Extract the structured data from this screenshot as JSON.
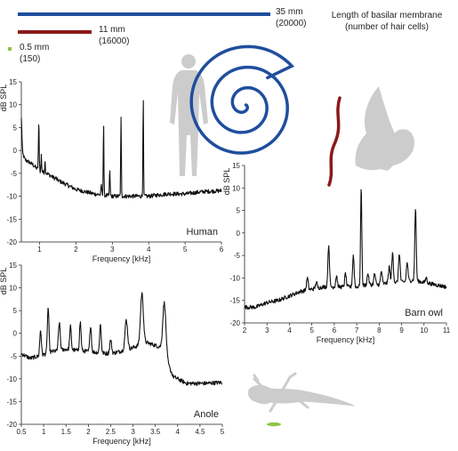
{
  "legend": {
    "header_line1": "Length of basilar membrane",
    "header_line2": "(number of hair cells)",
    "bars": [
      {
        "length": "35 mm",
        "cells": "(20000)",
        "color": "#1f4e9e",
        "mm": 35
      },
      {
        "length": "11 mm",
        "cells": "(16000)",
        "color": "#8b1a1a",
        "mm": 11
      },
      {
        "length": "0.5 mm",
        "cells": "(150)",
        "color": "#8dc63f",
        "mm": 0.5
      }
    ]
  },
  "illustrations": {
    "human": {
      "icon": "human-silhouette-icon",
      "color": "#cccccc"
    },
    "human_membrane": {
      "icon": "cochlea-spiral-icon",
      "color": "#1f4e9e"
    },
    "owl": {
      "icon": "owl-silhouette-icon",
      "color": "#cccccc"
    },
    "owl_membrane": {
      "icon": "owl-membrane-icon",
      "color": "#8b1a1a"
    },
    "anole": {
      "icon": "anole-silhouette-icon",
      "color": "#cccccc"
    },
    "anole_membrane": {
      "icon": "anole-membrane-icon",
      "color": "#8dc63f"
    }
  },
  "chart_data": [
    {
      "type": "line",
      "label": "Human",
      "xlabel": "Frequency [kHz]",
      "ylabel": "dB SPL",
      "xlim": [
        0.5,
        6
      ],
      "ylim": [
        -20,
        15
      ],
      "xticks": [
        "1",
        "2",
        "3",
        "4",
        "5",
        "6"
      ],
      "yticks": [
        "15",
        "10",
        "5",
        "0",
        "-5",
        "-10",
        "-15",
        "-20"
      ],
      "baseline": [
        [
          0.5,
          0
        ],
        [
          0.6,
          -2
        ],
        [
          0.8,
          -3
        ],
        [
          1.0,
          -4.5
        ],
        [
          1.2,
          -5
        ],
        [
          1.5,
          -6.5
        ],
        [
          2.0,
          -8.5
        ],
        [
          2.5,
          -9.5
        ],
        [
          3.0,
          -10
        ],
        [
          3.5,
          -10
        ],
        [
          4.0,
          -10
        ],
        [
          4.5,
          -9.5
        ],
        [
          5.0,
          -9.5
        ],
        [
          5.5,
          -9
        ],
        [
          6.0,
          -8.8
        ]
      ],
      "peaks": [
        [
          0.5,
          7,
          0.02
        ],
        [
          0.98,
          6,
          0.015
        ],
        [
          1.05,
          -1,
          0.012
        ],
        [
          1.15,
          -2,
          0.012
        ],
        [
          1.45,
          -6,
          0.015
        ],
        [
          2.7,
          -7.5,
          0.015
        ],
        [
          2.76,
          6.7,
          0.012
        ],
        [
          2.93,
          -4,
          0.013
        ],
        [
          3.24,
          7,
          0.013
        ],
        [
          3.85,
          11.7,
          0.012
        ]
      ]
    },
    {
      "type": "line",
      "label": "Anole",
      "xlabel": "Frequency [kHz]",
      "ylabel": "dB SPL",
      "xlim": [
        0.5,
        5
      ],
      "ylim": [
        -20,
        15
      ],
      "xticks": [
        "0.5",
        "1",
        "1.5",
        "2",
        "2.5",
        "3",
        "3.5",
        "4",
        "4.5",
        "5"
      ],
      "yticks": [
        "15",
        "10",
        "5",
        "0",
        "-5",
        "-10",
        "-15",
        "-20"
      ],
      "baseline": [
        [
          0.5,
          -4.5
        ],
        [
          0.7,
          -5.5
        ],
        [
          0.9,
          -5
        ],
        [
          1.2,
          -4
        ],
        [
          1.5,
          -3.5
        ],
        [
          2.0,
          -4
        ],
        [
          2.5,
          -4.5
        ],
        [
          2.9,
          -3.5
        ],
        [
          3.3,
          -2
        ],
        [
          3.6,
          -3
        ],
        [
          3.75,
          -6
        ],
        [
          3.9,
          -9.5
        ],
        [
          4.2,
          -11
        ],
        [
          4.6,
          -11
        ],
        [
          5.0,
          -10.8
        ]
      ],
      "peaks": [
        [
          0.93,
          0.7,
          0.025
        ],
        [
          1.1,
          5.7,
          0.025
        ],
        [
          1.35,
          2.3,
          0.028
        ],
        [
          1.6,
          1.5,
          0.025
        ],
        [
          1.82,
          2.5,
          0.025
        ],
        [
          2.05,
          1.7,
          0.025
        ],
        [
          2.27,
          2,
          0.025
        ],
        [
          2.5,
          -1.5,
          0.03
        ],
        [
          2.85,
          3,
          0.04
        ],
        [
          3.2,
          8.8,
          0.045
        ],
        [
          3.7,
          6.7,
          0.05
        ]
      ]
    },
    {
      "type": "line",
      "label": "Barn owl",
      "xlabel": "Frequency [kHz]",
      "ylabel": "dB SPL",
      "xlim": [
        2,
        11
      ],
      "ylim": [
        -20,
        15
      ],
      "xticks": [
        "2",
        "3",
        "4",
        "5",
        "6",
        "7",
        "8",
        "9",
        "10",
        "11"
      ],
      "yticks": [
        "15",
        "10",
        "5",
        "0",
        "-5",
        "-10",
        "-15",
        "-20"
      ],
      "baseline": [
        [
          2.0,
          -16.5
        ],
        [
          2.5,
          -16.5
        ],
        [
          3.0,
          -15.5
        ],
        [
          3.5,
          -15
        ],
        [
          4.0,
          -14
        ],
        [
          4.5,
          -13
        ],
        [
          5.0,
          -12.5
        ],
        [
          5.5,
          -12
        ],
        [
          6.0,
          -12
        ],
        [
          6.5,
          -12
        ],
        [
          7.0,
          -12
        ],
        [
          7.5,
          -11.5
        ],
        [
          8.0,
          -11.5
        ],
        [
          8.5,
          -11
        ],
        [
          9.0,
          -11
        ],
        [
          9.5,
          -10.5
        ],
        [
          10.0,
          -11
        ],
        [
          10.5,
          -11.5
        ],
        [
          11.0,
          -12
        ]
      ],
      "peaks": [
        [
          4.5,
          -13,
          0.05
        ],
        [
          4.8,
          -10,
          0.05
        ],
        [
          5.2,
          -11,
          0.05
        ],
        [
          5.75,
          -2.7,
          0.05
        ],
        [
          6.1,
          -9.5,
          0.05
        ],
        [
          6.5,
          -9,
          0.05
        ],
        [
          6.85,
          -5,
          0.05
        ],
        [
          7.2,
          10,
          0.04
        ],
        [
          7.5,
          -9,
          0.05
        ],
        [
          7.8,
          -9,
          0.05
        ],
        [
          8.1,
          -8.5,
          0.05
        ],
        [
          8.45,
          -7.5,
          0.05
        ],
        [
          8.6,
          -4.5,
          0.05
        ],
        [
          8.9,
          -4.5,
          0.05
        ],
        [
          9.25,
          -6.5,
          0.05
        ],
        [
          9.62,
          5.5,
          0.045
        ],
        [
          10.1,
          -10,
          0.05
        ]
      ]
    }
  ]
}
